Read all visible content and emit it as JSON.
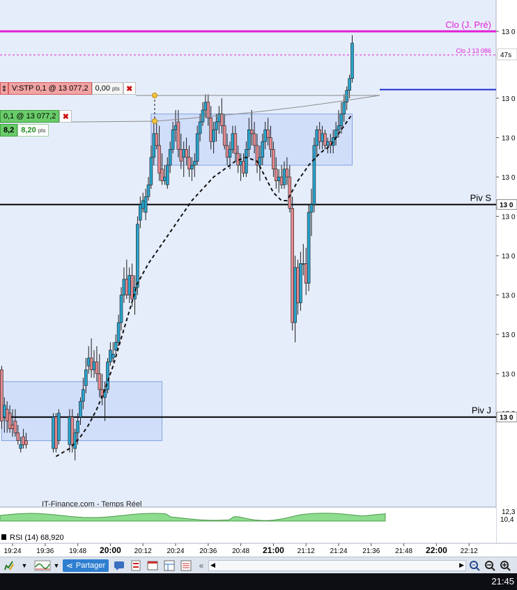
{
  "chart_data": {
    "type": "candlestick",
    "price_axis": {
      "labels": [
        {
          "text": "13 0",
          "v": 13092
        },
        {
          "text": "13 0",
          "v": 13075
        },
        {
          "text": "13 0",
          "v": 13065
        },
        {
          "text": "13 0",
          "v": 13055
        },
        {
          "text": "13 0",
          "v": 13045
        },
        {
          "text": "13 0",
          "v": 13035
        },
        {
          "text": "13 0",
          "v": 13025
        },
        {
          "text": "13 0",
          "v": 13015
        },
        {
          "text": "13 0",
          "v": 13005
        },
        {
          "text": "13 0",
          "v": 12995
        }
      ],
      "bold_labels": [
        {
          "text": "13 0",
          "v": 13048
        },
        {
          "text": "13 0",
          "v": 12994
        }
      ]
    },
    "time_axis": {
      "labels": [
        {
          "text": "19:24",
          "t": 0,
          "bold": false
        },
        {
          "text": "19:36",
          "t": 12,
          "bold": false
        },
        {
          "text": "19:48",
          "t": 24,
          "bold": false
        },
        {
          "text": "20:00",
          "t": 36,
          "bold": true
        },
        {
          "text": "20:12",
          "t": 48,
          "bold": false
        },
        {
          "text": "20:24",
          "t": 60,
          "bold": false
        },
        {
          "text": "20:36",
          "t": 72,
          "bold": false
        },
        {
          "text": "20:48",
          "t": 84,
          "bold": false
        },
        {
          "text": "21:00",
          "t": 96,
          "bold": true
        },
        {
          "text": "21:12",
          "t": 108,
          "bold": false
        },
        {
          "text": "21:24",
          "t": 120,
          "bold": false
        },
        {
          "text": "21:36",
          "t": 132,
          "bold": false
        },
        {
          "text": "21:48",
          "t": 144,
          "bold": false
        },
        {
          "text": "22:00",
          "t": 156,
          "bold": true
        },
        {
          "text": "22:12",
          "t": 168,
          "bold": false
        }
      ]
    },
    "candles": [
      {
        "t": -4,
        "o": 13006,
        "h": 13007,
        "l": 12991,
        "c": 12993
      },
      {
        "t": -3,
        "o": 12994,
        "h": 12999,
        "l": 12990,
        "c": 12997
      },
      {
        "t": -2,
        "o": 12996,
        "h": 12998,
        "l": 12990,
        "c": 12993
      },
      {
        "t": -1,
        "o": 12995,
        "h": 12997,
        "l": 12990,
        "c": 12991
      },
      {
        "t": 0,
        "o": 12992,
        "h": 12996,
        "l": 12989,
        "c": 12991
      },
      {
        "t": 1,
        "o": 12993,
        "h": 12996,
        "l": 12989,
        "c": 12990
      },
      {
        "t": 2,
        "o": 12990,
        "h": 12992,
        "l": 12987,
        "c": 12988
      },
      {
        "t": 3,
        "o": 12986,
        "h": 12989,
        "l": 12985,
        "c": 12987
      },
      {
        "t": 4,
        "o": 12989,
        "h": 12991,
        "l": 12986,
        "c": 12987
      },
      {
        "t": 5,
        "o": 12988,
        "h": 12990,
        "l": 12986,
        "c": 12987
      },
      {
        "t": 15,
        "o": 12986,
        "h": 12995,
        "l": 12985,
        "c": 12994
      },
      {
        "t": 16,
        "o": 12994,
        "h": 12995,
        "l": 12985,
        "c": 12986
      },
      {
        "t": 17,
        "o": 12988,
        "h": 12996,
        "l": 12987,
        "c": 12995
      },
      {
        "t": 21,
        "o": 12987,
        "h": 12996,
        "l": 12985,
        "c": 12994
      },
      {
        "t": 22,
        "o": 12994,
        "h": 12996,
        "l": 12985,
        "c": 12987
      },
      {
        "t": 23,
        "o": 12986,
        "h": 12991,
        "l": 12983,
        "c": 12990
      },
      {
        "t": 24,
        "o": 12990,
        "h": 12995,
        "l": 12987,
        "c": 12993
      },
      {
        "t": 25,
        "o": 12994,
        "h": 12999,
        "l": 12992,
        "c": 12998
      },
      {
        "t": 26,
        "o": 12998,
        "h": 13004,
        "l": 12996,
        "c": 13001
      },
      {
        "t": 27,
        "o": 13002,
        "h": 13009,
        "l": 13000,
        "c": 13006
      },
      {
        "t": 28,
        "o": 13007,
        "h": 13012,
        "l": 13005,
        "c": 13009
      },
      {
        "t": 29,
        "o": 13009,
        "h": 13014,
        "l": 13004,
        "c": 13006
      },
      {
        "t": 30,
        "o": 13006,
        "h": 13011,
        "l": 13004,
        "c": 13008
      },
      {
        "t": 31,
        "o": 13008,
        "h": 13012,
        "l": 13003,
        "c": 13005
      },
      {
        "t": 32,
        "o": 13005,
        "h": 13010,
        "l": 12999,
        "c": 13001
      },
      {
        "t": 33,
        "o": 13001,
        "h": 13005,
        "l": 12997,
        "c": 12999
      },
      {
        "t": 34,
        "o": 12999,
        "h": 13003,
        "l": 12993,
        "c": 13001
      },
      {
        "t": 35,
        "o": 13001,
        "h": 13009,
        "l": 13000,
        "c": 13008
      },
      {
        "t": 36,
        "o": 13008,
        "h": 13013,
        "l": 13007,
        "c": 13011
      },
      {
        "t": 37,
        "o": 13009,
        "h": 13013,
        "l": 13008,
        "c": 13010
      },
      {
        "t": 38,
        "o": 13011,
        "h": 13015,
        "l": 13010,
        "c": 13013
      },
      {
        "t": 39,
        "o": 13013,
        "h": 13020,
        "l": 13012,
        "c": 13018
      },
      {
        "t": 40,
        "o": 13018,
        "h": 13027,
        "l": 13016,
        "c": 13025
      },
      {
        "t": 41,
        "o": 13025,
        "h": 13032,
        "l": 13023,
        "c": 13029
      },
      {
        "t": 42,
        "o": 13029,
        "h": 13034,
        "l": 13024,
        "c": 13025
      },
      {
        "t": 43,
        "o": 13025,
        "h": 13032,
        "l": 13023,
        "c": 13030
      },
      {
        "t": 44,
        "o": 13030,
        "h": 13033,
        "l": 13022,
        "c": 13024
      },
      {
        "t": 45,
        "o": 13024,
        "h": 13030,
        "l": 13020,
        "c": 13027
      },
      {
        "t": 46,
        "o": 13027,
        "h": 13045,
        "l": 13025,
        "c": 13043
      },
      {
        "t": 47,
        "o": 13044,
        "h": 13050,
        "l": 13042,
        "c": 13048
      },
      {
        "t": 48,
        "o": 13047,
        "h": 13051,
        "l": 13046,
        "c": 13049
      },
      {
        "t": 49,
        "o": 13046,
        "h": 13052,
        "l": 13044,
        "c": 13050
      },
      {
        "t": 50,
        "o": 13050,
        "h": 13055,
        "l": 13049,
        "c": 13053
      },
      {
        "t": 51,
        "o": 13053,
        "h": 13063,
        "l": 13052,
        "c": 13060
      },
      {
        "t": 52,
        "o": 13060,
        "h": 13069,
        "l": 13058,
        "c": 13066
      },
      {
        "t": 53,
        "o": 13066,
        "h": 13069,
        "l": 13062,
        "c": 13063
      },
      {
        "t": 54,
        "o": 13063,
        "h": 13068,
        "l": 13054,
        "c": 13056
      },
      {
        "t": 55,
        "o": 13057,
        "h": 13061,
        "l": 13053,
        "c": 13054
      },
      {
        "t": 56,
        "o": 13054,
        "h": 13058,
        "l": 13053,
        "c": 13055
      },
      {
        "t": 57,
        "o": 13053,
        "h": 13060,
        "l": 13052,
        "c": 13058
      },
      {
        "t": 58,
        "o": 13058,
        "h": 13064,
        "l": 13056,
        "c": 13062
      },
      {
        "t": 59,
        "o": 13062,
        "h": 13069,
        "l": 13061,
        "c": 13067
      },
      {
        "t": 60,
        "o": 13067,
        "h": 13072,
        "l": 13064,
        "c": 13068
      },
      {
        "t": 61,
        "o": 13069,
        "h": 13072,
        "l": 13060,
        "c": 13062
      },
      {
        "t": 62,
        "o": 13062,
        "h": 13066,
        "l": 13057,
        "c": 13059
      },
      {
        "t": 63,
        "o": 13060,
        "h": 13064,
        "l": 13055,
        "c": 13062
      },
      {
        "t": 64,
        "o": 13062,
        "h": 13065,
        "l": 13058,
        "c": 13060
      },
      {
        "t": 65,
        "o": 13060,
        "h": 13063,
        "l": 13055,
        "c": 13057
      },
      {
        "t": 66,
        "o": 13057,
        "h": 13060,
        "l": 13054,
        "c": 13058
      },
      {
        "t": 67,
        "o": 13058,
        "h": 13061,
        "l": 13055,
        "c": 13059
      },
      {
        "t": 68,
        "o": 13059,
        "h": 13068,
        "l": 13058,
        "c": 13066
      },
      {
        "t": 69,
        "o": 13066,
        "h": 13071,
        "l": 13064,
        "c": 13069
      },
      {
        "t": 70,
        "o": 13069,
        "h": 13074,
        "l": 13068,
        "c": 13072
      },
      {
        "t": 71,
        "o": 13072,
        "h": 13076,
        "l": 13070,
        "c": 13074
      },
      {
        "t": 72,
        "o": 13074,
        "h": 13076,
        "l": 13068,
        "c": 13070
      },
      {
        "t": 73,
        "o": 13070,
        "h": 13073,
        "l": 13062,
        "c": 13064
      },
      {
        "t": 74,
        "o": 13064,
        "h": 13069,
        "l": 13061,
        "c": 13067
      },
      {
        "t": 75,
        "o": 13067,
        "h": 13071,
        "l": 13064,
        "c": 13069
      },
      {
        "t": 76,
        "o": 13069,
        "h": 13073,
        "l": 13066,
        "c": 13071
      },
      {
        "t": 77,
        "o": 13071,
        "h": 13075,
        "l": 13066,
        "c": 13068
      },
      {
        "t": 78,
        "o": 13068,
        "h": 13071,
        "l": 13062,
        "c": 13063
      },
      {
        "t": 79,
        "o": 13063,
        "h": 13066,
        "l": 13058,
        "c": 13060
      },
      {
        "t": 80,
        "o": 13060,
        "h": 13064,
        "l": 13057,
        "c": 13062
      },
      {
        "t": 81,
        "o": 13062,
        "h": 13068,
        "l": 13061,
        "c": 13066
      },
      {
        "t": 82,
        "o": 13066,
        "h": 13068,
        "l": 13059,
        "c": 13061
      },
      {
        "t": 83,
        "o": 13061,
        "h": 13063,
        "l": 13056,
        "c": 13058
      },
      {
        "t": 84,
        "o": 13058,
        "h": 13061,
        "l": 13054,
        "c": 13059
      },
      {
        "t": 85,
        "o": 13059,
        "h": 13061,
        "l": 13055,
        "c": 13056
      },
      {
        "t": 86,
        "o": 13056,
        "h": 13064,
        "l": 13055,
        "c": 13062
      },
      {
        "t": 87,
        "o": 13062,
        "h": 13070,
        "l": 13060,
        "c": 13067
      },
      {
        "t": 88,
        "o": 13067,
        "h": 13072,
        "l": 13063,
        "c": 13066
      },
      {
        "t": 89,
        "o": 13066,
        "h": 13069,
        "l": 13061,
        "c": 13063
      },
      {
        "t": 90,
        "o": 13063,
        "h": 13066,
        "l": 13056,
        "c": 13058
      },
      {
        "t": 91,
        "o": 13058,
        "h": 13063,
        "l": 13054,
        "c": 13060
      },
      {
        "t": 92,
        "o": 13060,
        "h": 13066,
        "l": 13058,
        "c": 13064
      },
      {
        "t": 93,
        "o": 13064,
        "h": 13069,
        "l": 13062,
        "c": 13067
      },
      {
        "t": 94,
        "o": 13067,
        "h": 13070,
        "l": 13063,
        "c": 13065
      },
      {
        "t": 95,
        "o": 13065,
        "h": 13068,
        "l": 13060,
        "c": 13062
      },
      {
        "t": 96,
        "o": 13062,
        "h": 13064,
        "l": 13055,
        "c": 13057
      },
      {
        "t": 97,
        "o": 13057,
        "h": 13060,
        "l": 13052,
        "c": 13054
      },
      {
        "t": 98,
        "o": 13054,
        "h": 13057,
        "l": 13051,
        "c": 13055
      },
      {
        "t": 99,
        "o": 13055,
        "h": 13058,
        "l": 13052,
        "c": 13053
      },
      {
        "t": 100,
        "o": 13053,
        "h": 13059,
        "l": 13052,
        "c": 13057
      },
      {
        "t": 101,
        "o": 13057,
        "h": 13060,
        "l": 13053,
        "c": 13055
      },
      {
        "t": 102,
        "o": 13055,
        "h": 13058,
        "l": 13046,
        "c": 13047
      },
      {
        "t": 103,
        "o": 13047,
        "h": 13050,
        "l": 13016,
        "c": 13018
      },
      {
        "t": 104,
        "o": 13018,
        "h": 13035,
        "l": 13013,
        "c": 13032
      },
      {
        "t": 105,
        "o": 13032,
        "h": 13034,
        "l": 13020,
        "c": 13023
      },
      {
        "t": 106,
        "o": 13023,
        "h": 13036,
        "l": 13021,
        "c": 13033
      },
      {
        "t": 107,
        "o": 13033,
        "h": 13038,
        "l": 13030,
        "c": 13033
      },
      {
        "t": 108,
        "o": 13033,
        "h": 13037,
        "l": 13025,
        "c": 13028
      },
      {
        "t": 109,
        "o": 13028,
        "h": 13048,
        "l": 13026,
        "c": 13046
      },
      {
        "t": 110,
        "o": 13046,
        "h": 13052,
        "l": 13040,
        "c": 13048
      },
      {
        "t": 111,
        "o": 13048,
        "h": 13065,
        "l": 13046,
        "c": 13063
      },
      {
        "t": 112,
        "o": 13063,
        "h": 13068,
        "l": 13060,
        "c": 13067
      },
      {
        "t": 113,
        "o": 13067,
        "h": 13069,
        "l": 13062,
        "c": 13064
      },
      {
        "t": 114,
        "o": 13064,
        "h": 13068,
        "l": 13062,
        "c": 13066
      },
      {
        "t": 115,
        "o": 13066,
        "h": 13067,
        "l": 13062,
        "c": 13063
      },
      {
        "t": 116,
        "o": 13063,
        "h": 13065,
        "l": 13061,
        "c": 13064
      },
      {
        "t": 117,
        "o": 13064,
        "h": 13066,
        "l": 13061,
        "c": 13063
      },
      {
        "t": 118,
        "o": 13063,
        "h": 13067,
        "l": 13061,
        "c": 13065
      },
      {
        "t": 119,
        "o": 13065,
        "h": 13069,
        "l": 13063,
        "c": 13067
      },
      {
        "t": 120,
        "o": 13067,
        "h": 13072,
        "l": 13065,
        "c": 13068
      },
      {
        "t": 121,
        "o": 13068,
        "h": 13074,
        "l": 13066,
        "c": 13071
      },
      {
        "t": 122,
        "o": 13071,
        "h": 13076,
        "l": 13069,
        "c": 13074
      },
      {
        "t": 123,
        "o": 13074,
        "h": 13078,
        "l": 13072,
        "c": 13077
      },
      {
        "t": 124,
        "o": 13077,
        "h": 13081,
        "l": 13075,
        "c": 13080
      },
      {
        "t": 125,
        "o": 13080,
        "h": 13091,
        "l": 13079,
        "c": 13089
      }
    ],
    "moving_average": [
      {
        "t": 16,
        "v": 12984
      },
      {
        "t": 21,
        "v": 12986
      },
      {
        "t": 25,
        "v": 12989
      },
      {
        "t": 28,
        "v": 12992
      },
      {
        "t": 31,
        "v": 12996
      },
      {
        "t": 34,
        "v": 13001
      },
      {
        "t": 37,
        "v": 13007
      },
      {
        "t": 40,
        "v": 13014
      },
      {
        "t": 43,
        "v": 13021
      },
      {
        "t": 46,
        "v": 13028
      },
      {
        "t": 50,
        "v": 13033
      },
      {
        "t": 54,
        "v": 13037
      },
      {
        "t": 58,
        "v": 13041
      },
      {
        "t": 62,
        "v": 13045
      },
      {
        "t": 66,
        "v": 13049
      },
      {
        "t": 70,
        "v": 13052
      },
      {
        "t": 74,
        "v": 13055
      },
      {
        "t": 78,
        "v": 13057
      },
      {
        "t": 82,
        "v": 13059
      },
      {
        "t": 86,
        "v": 13060
      },
      {
        "t": 90,
        "v": 13059
      },
      {
        "t": 93,
        "v": 13055
      },
      {
        "t": 96,
        "v": 13051
      },
      {
        "t": 99,
        "v": 13049
      },
      {
        "t": 101,
        "v": 13049
      },
      {
        "t": 105,
        "v": 13054
      },
      {
        "t": 109,
        "v": 13058
      },
      {
        "t": 113,
        "v": 13061
      },
      {
        "t": 117,
        "v": 13063
      },
      {
        "t": 120,
        "v": 13066
      },
      {
        "t": 123,
        "v": 13069
      },
      {
        "t": 125,
        "v": 13071
      }
    ],
    "reference_lines": [
      {
        "key": "clo_j_pre",
        "label": "Clo (J. Pré)",
        "v": 13092,
        "color": "#e020d8",
        "style": "solid"
      },
      {
        "key": "clo_j",
        "label": "Clo J 13 086",
        "v": 13086,
        "color": "#e020d8",
        "style": "dashed"
      },
      {
        "key": "stop",
        "label": "",
        "v": 13077.2,
        "color": "#1a2fd0",
        "style": "solid"
      },
      {
        "key": "piv_s",
        "label": "Piv S",
        "v": 13048,
        "color": "#000000",
        "style": "solid"
      },
      {
        "key": "piv_j",
        "label": "Piv J",
        "v": 12994,
        "color": "#000000",
        "style": "solid"
      }
    ],
    "boxes": [
      {
        "t0": 51,
        "t1": 125,
        "v0": 13058,
        "v1": 13071
      },
      {
        "t0": -4,
        "t1": 55,
        "v0": 12988,
        "v1": 13003
      }
    ],
    "timer_label": "47s",
    "rsi": {
      "label": "RSI (14) 68,920",
      "axis_values": [
        "12,3",
        "10,4"
      ]
    },
    "watermark": "IT-Finance.com - Temps Réel",
    "colors": {
      "up": "#29a3cc",
      "down": "#e2888d",
      "bg": "#e6edfa",
      "box": "#ccdaf9",
      "rsi": "#8edc8e"
    }
  },
  "orders": {
    "sell_stop": {
      "label": "V:STP 0,1 @ 13 077,2",
      "pnl": "0,00",
      "unit": "pts"
    },
    "buy": {
      "label": "0,1 @ 13 077,2",
      "price": "8,2",
      "pnl": "8,20",
      "unit": "pts"
    }
  },
  "toolbar": {
    "share_label": "Partager"
  },
  "clock": "21:45"
}
